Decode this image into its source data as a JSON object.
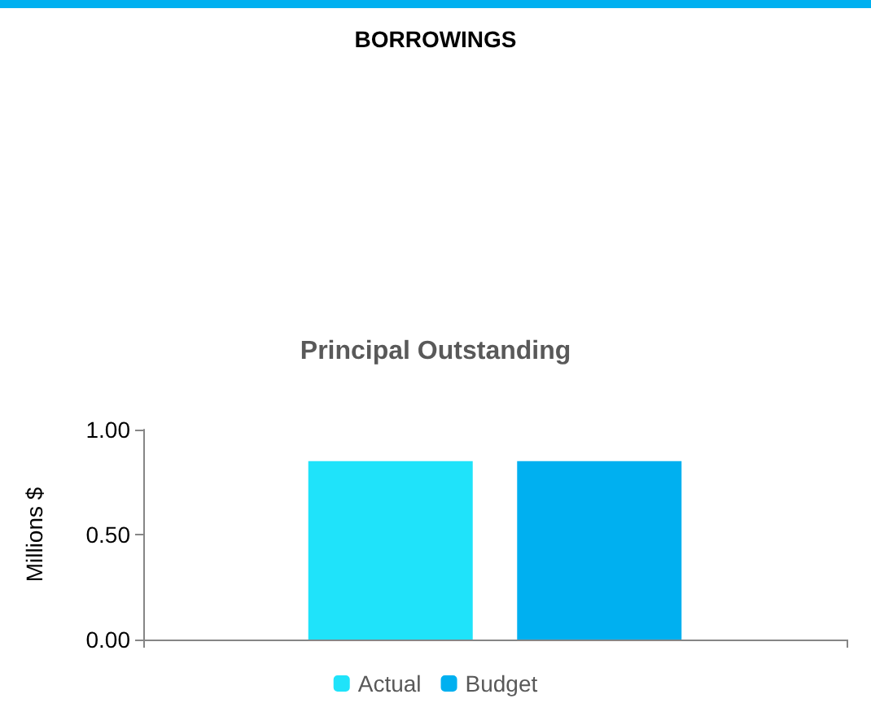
{
  "chart_data": {
    "type": "bar",
    "title": "BORROWINGS",
    "subtitle": "Principal Outstanding",
    "ylabel": "Millions $",
    "categories": [
      null
    ],
    "series": [
      {
        "name": "Actual",
        "color": "#1fe3fa",
        "values": [
          0.85
        ]
      },
      {
        "name": "Budget",
        "color": "#00b0f0",
        "values": [
          0.85
        ]
      }
    ],
    "ylim": [
      0,
      1
    ],
    "yticks": [
      {
        "value": 0,
        "label": "0.00"
      },
      {
        "value": 0.5,
        "label": "0.50"
      },
      {
        "value": 1,
        "label": "1.00"
      }
    ],
    "grid": false,
    "legend": "bottom"
  }
}
